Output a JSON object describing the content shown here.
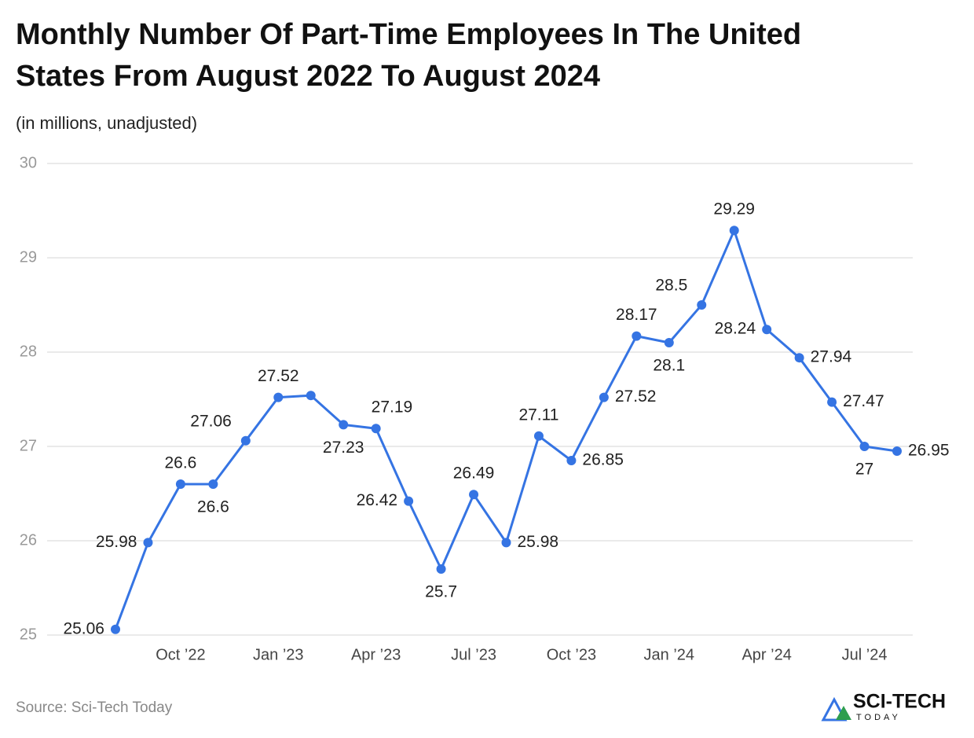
{
  "chart_data": {
    "type": "line",
    "title": "Monthly Number Of Part-Time Employees In The United States From August 2022 To August 2024",
    "title_lines": [
      "Monthly Number Of Part-Time Employees In The United",
      "States From August 2022 To August 2024"
    ],
    "subtitle": "(in millions, unadjusted)",
    "source": "Source: Sci-Tech Today",
    "logo": {
      "name": "SCI-TECH",
      "tagline": "TODAY"
    },
    "categories": [
      null,
      null,
      "Oct ’22",
      null,
      null,
      "Jan ’23",
      null,
      null,
      "Apr ’23",
      null,
      null,
      "Jul ’23",
      null,
      null,
      "Oct ’23",
      null,
      null,
      "Jan ’24",
      null,
      null,
      "Apr ’24",
      null,
      null,
      "Jul ’24",
      null
    ],
    "series": [
      {
        "name": "Part-time employees",
        "color": "#3574e3",
        "values": [
          25.06,
          25.98,
          26.6,
          26.6,
          27.06,
          27.52,
          27.54,
          27.23,
          27.19,
          26.42,
          25.7,
          26.49,
          25.98,
          27.11,
          26.85,
          27.52,
          28.17,
          28.1,
          28.5,
          29.29,
          28.24,
          27.94,
          27.47,
          27,
          26.95
        ],
        "value_labels": [
          "25.06",
          "25.98",
          "26.6",
          "26.6",
          "27.06",
          "27.52",
          null,
          "27.23",
          "27.19",
          "26.42",
          "25.7",
          "26.49",
          "25.98",
          "27.11",
          "26.85",
          "27.52",
          "28.17",
          "28.1",
          "28.5",
          "29.29",
          "28.24",
          "27.94",
          "27.47",
          "27",
          "26.95"
        ]
      }
    ],
    "ylim": [
      25,
      30
    ],
    "yticks": [
      25,
      26,
      27,
      28,
      29,
      30
    ],
    "grid": true
  }
}
